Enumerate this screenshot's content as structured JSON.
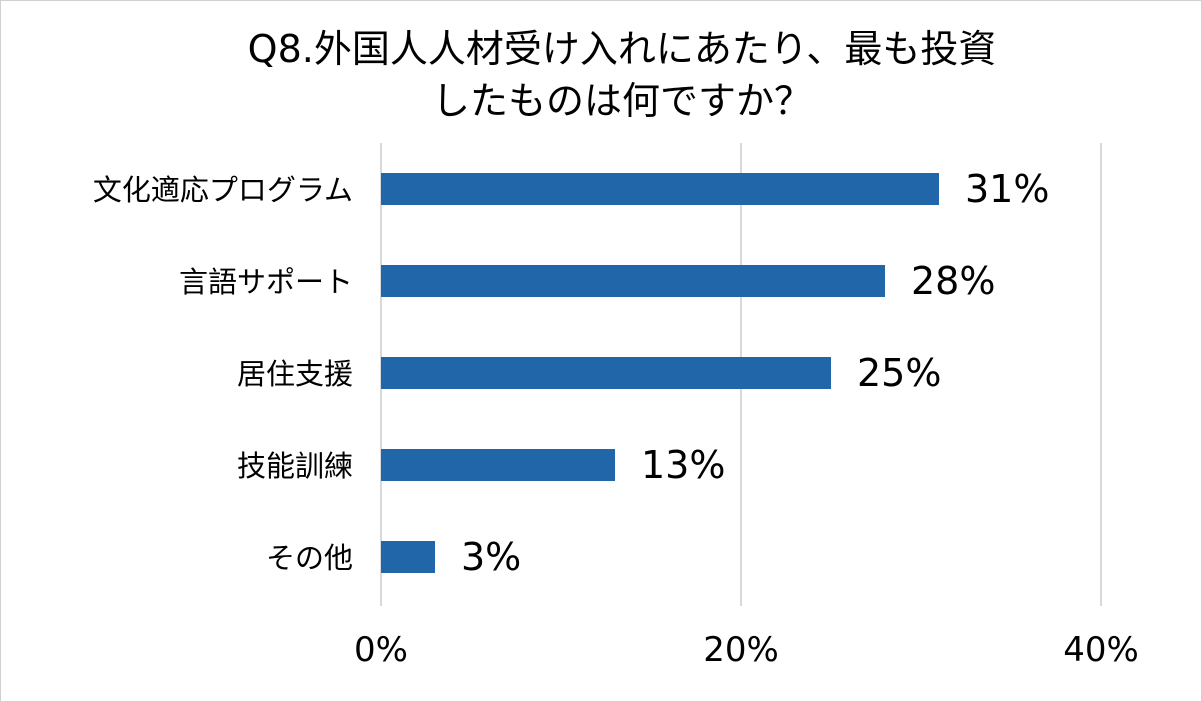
{
  "chart_data": {
    "type": "bar",
    "orientation": "horizontal",
    "title_lines": [
      "Q8.外国人人材受け入れにあたり、最も投資",
      "したものは何ですか？"
    ],
    "categories": [
      "文化適応プログラム",
      "言語サポート",
      "居住支援",
      "技能訓練",
      "その他"
    ],
    "values": [
      31,
      28,
      25,
      13,
      3
    ],
    "value_labels": [
      "31%",
      "28%",
      "25%",
      "13%",
      "3%"
    ],
    "xlim": [
      0,
      40
    ],
    "x_ticks": [
      0,
      20,
      40
    ],
    "x_tick_labels": [
      "0%",
      "20%",
      "40%"
    ],
    "grid": true,
    "legend": "none",
    "colors": {
      "bar": "#2166a8",
      "grid": "#d9d9d9",
      "text": "#000000"
    }
  }
}
